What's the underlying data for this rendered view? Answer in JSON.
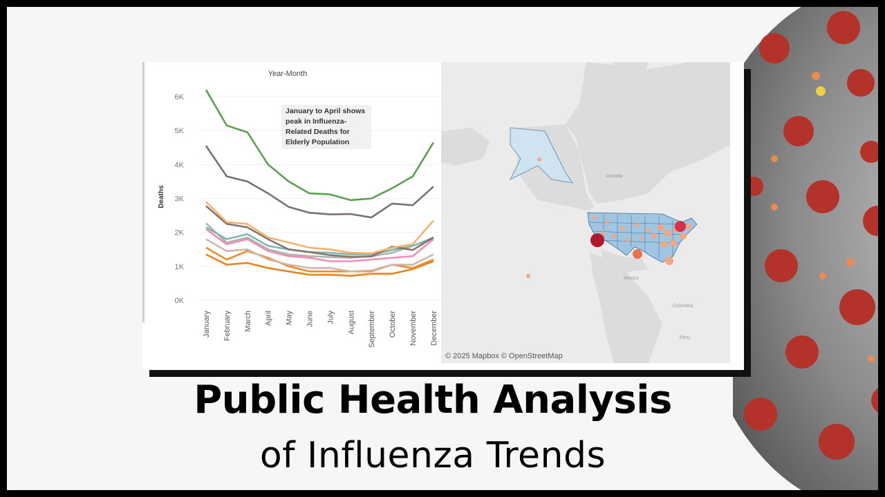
{
  "chart_data": {
    "type": "line",
    "title": "Year-Month",
    "ylabel": "Deaths",
    "categories": [
      "January",
      "February",
      "March",
      "April",
      "May",
      "June",
      "July",
      "August",
      "September",
      "October",
      "November",
      "December"
    ],
    "y_ticks": [
      "0K",
      "1K",
      "2K",
      "3K",
      "4K",
      "5K",
      "6K"
    ],
    "ylim": [
      0,
      6500
    ],
    "grid": true,
    "annotation": "January to April shows peak in Influenza-Related Deaths for Elderly Population",
    "series": [
      {
        "color": "#59a14f",
        "values": [
          6200,
          5150,
          4950,
          4000,
          3500,
          3150,
          3120,
          2950,
          3000,
          3300,
          3650,
          4650
        ]
      },
      {
        "color": "#79706e",
        "values": [
          4550,
          3650,
          3500,
          3150,
          2750,
          2580,
          2530,
          2540,
          2440,
          2850,
          2800,
          3350
        ]
      },
      {
        "color": "#f4b26b",
        "values": [
          2900,
          2300,
          2250,
          1850,
          1700,
          1550,
          1500,
          1400,
          1380,
          1550,
          1650,
          2350
        ]
      },
      {
        "color": "#86746c",
        "values": [
          2780,
          2250,
          2150,
          1800,
          1500,
          1420,
          1330,
          1280,
          1290,
          1580,
          1480,
          1850
        ]
      },
      {
        "color": "#7fb7ae",
        "values": [
          2150,
          1800,
          1950,
          1600,
          1500,
          1420,
          1400,
          1350,
          1350,
          1480,
          1600,
          1850
        ]
      },
      {
        "color": "#b0b0b0",
        "values": [
          2270,
          1700,
          1850,
          1500,
          1350,
          1300,
          1270,
          1250,
          1300,
          1400,
          1600,
          1820
        ]
      },
      {
        "color": "#f28cb4",
        "values": [
          2100,
          1650,
          1800,
          1450,
          1300,
          1250,
          1150,
          1150,
          1200,
          1250,
          1300,
          1800
        ]
      },
      {
        "color": "#cbb8ae",
        "values": [
          1800,
          1450,
          1500,
          1200,
          1050,
          950,
          950,
          850,
          880,
          1050,
          1050,
          1350
        ]
      },
      {
        "color": "#f08a2a",
        "values": [
          1550,
          1200,
          1450,
          1250,
          1000,
          850,
          850,
          850,
          850,
          1050,
          950,
          1200
        ]
      },
      {
        "color": "#e8841f",
        "values": [
          1350,
          1050,
          1100,
          950,
          850,
          750,
          750,
          720,
          780,
          780,
          920,
          1150
        ]
      }
    ]
  },
  "map": {
    "attribution": "© 2025 Mapbox  © OpenStreetMap",
    "labels": {
      "canada": "Canada",
      "mexico": "Mexico",
      "colombia": "Colombia",
      "peru": "Peru"
    },
    "colors": {
      "state_fill": "#9fc5e0",
      "state_stroke": "#4a76a8",
      "dot_small": "#f4a582",
      "dot_large": "#b2182b"
    }
  },
  "heading": {
    "main": "Public Health Analysis",
    "sub": "of Influenza Trends"
  }
}
